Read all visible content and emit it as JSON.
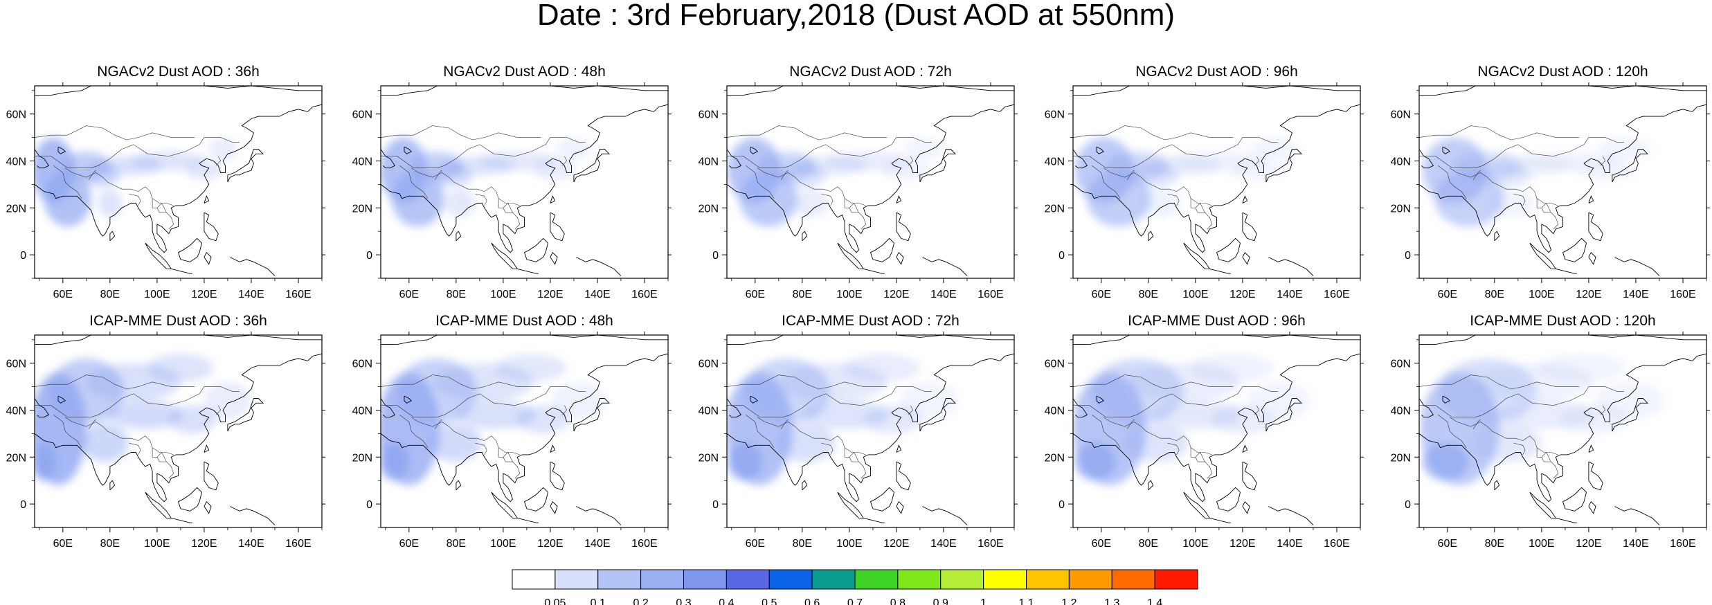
{
  "title": "Date : 3rd February,2018 (Dust AOD at 550nm)",
  "rows": [
    {
      "model": "NGACv2",
      "panels": [
        {
          "label": "NGACv2 Dust AOD : 36h"
        },
        {
          "label": "NGACv2 Dust AOD : 48h"
        },
        {
          "label": "NGACv2 Dust AOD : 72h"
        },
        {
          "label": "NGACv2 Dust AOD : 96h"
        },
        {
          "label": "NGACv2 Dust AOD : 120h"
        }
      ]
    },
    {
      "model": "ICAP-MME",
      "panels": [
        {
          "label": "ICAP-MME Dust AOD : 36h"
        },
        {
          "label": "ICAP-MME Dust AOD : 48h"
        },
        {
          "label": "ICAP-MME Dust AOD : 72h"
        },
        {
          "label": "ICAP-MME Dust AOD : 96h"
        },
        {
          "label": "ICAP-MME Dust AOD : 120h"
        }
      ]
    }
  ],
  "map": {
    "lon_range": [
      48,
      170
    ],
    "lat_range": [
      -10,
      72
    ],
    "lon_ticks": [
      "60E",
      "80E",
      "100E",
      "120E",
      "140E",
      "160E"
    ],
    "lat_ticks": [
      "60N",
      "40N",
      "20N",
      "0"
    ]
  },
  "colorbar": {
    "labels": [
      "0.05",
      "0.1",
      "0.2",
      "0.3",
      "0.4",
      "0.5",
      "0.6",
      "0.7",
      "0.8",
      "0.9",
      "1",
      "1.1",
      "1.2",
      "1.3",
      "1.4"
    ],
    "colors": [
      "#ffffff",
      "#d6e0fa",
      "#b3c4f6",
      "#9ab0f3",
      "#7f96ef",
      "#5a68e6",
      "#0b63e6",
      "#0a9a8e",
      "#3fd32a",
      "#7fe81a",
      "#b5ef3a",
      "#ffff00",
      "#ffc400",
      "#ff9a00",
      "#ff6a00",
      "#ff1a00"
    ]
  }
}
